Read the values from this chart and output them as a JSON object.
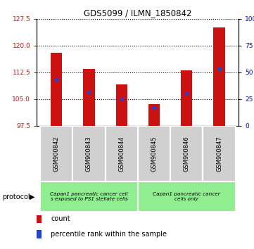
{
  "title": "GDS5099 / ILMN_1850842",
  "samples": [
    "GSM900842",
    "GSM900843",
    "GSM900844",
    "GSM900845",
    "GSM900846",
    "GSM900847"
  ],
  "count_values": [
    118.0,
    113.5,
    109.0,
    103.5,
    113.0,
    125.0
  ],
  "percentile_values": [
    110.5,
    107.0,
    105.0,
    102.5,
    106.5,
    113.5
  ],
  "y_min": 97.5,
  "y_max": 127.5,
  "y_ticks": [
    97.5,
    105.0,
    112.5,
    120.0,
    127.5
  ],
  "right_y_ticks": [
    0,
    25,
    50,
    75,
    100
  ],
  "right_y_labels": [
    "0",
    "25",
    "50",
    "75",
    "100%"
  ],
  "bar_color": "#cc1111",
  "percentile_color": "#2244cc",
  "bar_width": 0.35,
  "groups": [
    {
      "label": "Capan1 pancreatic cancer cell\ns exposed to PS1 stellate cells",
      "start": 0,
      "end": 3
    },
    {
      "label": "Capan1 pancreatic cancer\ncells only",
      "start": 3,
      "end": 6
    }
  ],
  "group_bg_color": "#90ee90",
  "sample_bg_color": "#d0d0d0",
  "protocol_label": "protocol",
  "legend_count_label": "count",
  "legend_percentile_label": "percentile rank within the sample"
}
